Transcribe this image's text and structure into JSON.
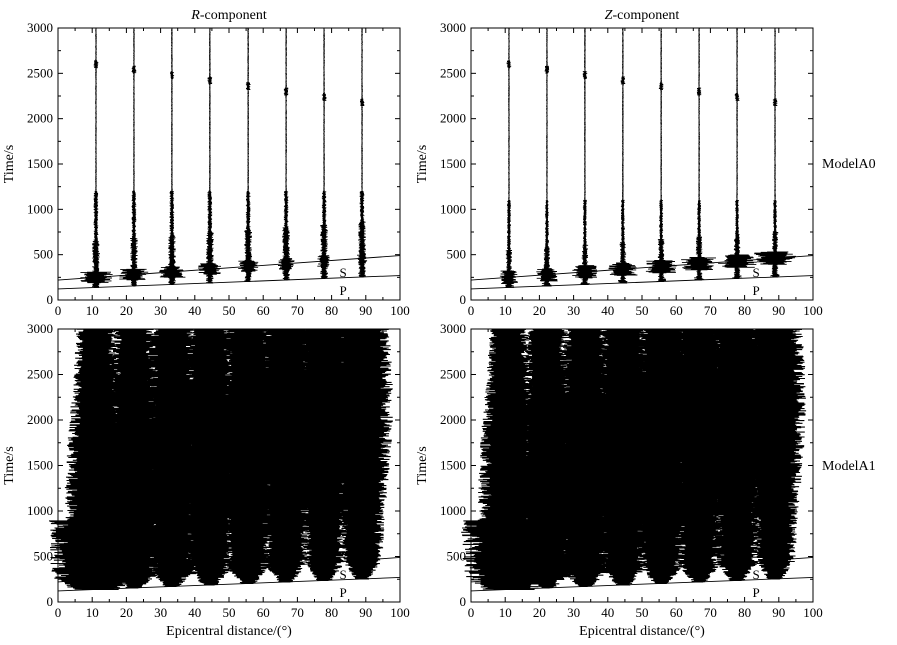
{
  "figure": {
    "column_titles": [
      {
        "italic": "R",
        "rest": "-component"
      },
      {
        "italic": "Z",
        "rest": "-component"
      }
    ],
    "row_labels": [
      "ModelA0",
      "ModelA1"
    ],
    "xlabel": "Epicentral distance/(°)",
    "ylabel": "Time/s"
  },
  "chart_data": [
    {
      "type": "scatter",
      "panel": "R-component / ModelA0",
      "xlim": [
        0,
        100
      ],
      "ylim": [
        0,
        3000
      ],
      "x_ticks": [
        0,
        10,
        20,
        30,
        40,
        50,
        60,
        70,
        80,
        90,
        100
      ],
      "y_ticks": [
        0,
        500,
        1000,
        1500,
        2000,
        2500,
        3000
      ],
      "trace_distances": [
        11.1,
        22.2,
        33.3,
        44.4,
        55.6,
        66.7,
        77.8,
        88.9
      ],
      "travel_time_curves": [
        {
          "name": "S",
          "points": [
            [
              0,
              220
            ],
            [
              100,
              490
            ]
          ]
        },
        {
          "name": "P",
          "points": [
            [
              0,
              122
            ],
            [
              100,
              270
            ]
          ]
        }
      ]
    },
    {
      "type": "scatter",
      "panel": "Z-component / ModelA0",
      "xlim": [
        0,
        100
      ],
      "ylim": [
        0,
        3000
      ],
      "x_ticks": [
        0,
        10,
        20,
        30,
        40,
        50,
        60,
        70,
        80,
        90,
        100
      ],
      "y_ticks": [
        0,
        500,
        1000,
        1500,
        2000,
        2500,
        3000
      ],
      "trace_distances": [
        11.1,
        22.2,
        33.3,
        44.4,
        55.6,
        66.7,
        77.8,
        88.9
      ],
      "travel_time_curves": [
        {
          "name": "S",
          "points": [
            [
              0,
              220
            ],
            [
              100,
              490
            ]
          ]
        },
        {
          "name": "P",
          "points": [
            [
              0,
              122
            ],
            [
              100,
              270
            ]
          ]
        }
      ]
    },
    {
      "type": "scatter",
      "panel": "R-component / ModelA1",
      "xlim": [
        0,
        100
      ],
      "ylim": [
        0,
        3000
      ],
      "x_ticks": [
        0,
        10,
        20,
        30,
        40,
        50,
        60,
        70,
        80,
        90,
        100
      ],
      "y_ticks": [
        0,
        500,
        1000,
        1500,
        2000,
        2500,
        3000
      ],
      "trace_distances": [
        11.1,
        22.2,
        33.3,
        44.4,
        55.6,
        66.7,
        77.8,
        88.9
      ],
      "travel_time_curves": [
        {
          "name": "S",
          "points": [
            [
              0,
              220
            ],
            [
              100,
              490
            ]
          ]
        },
        {
          "name": "P",
          "points": [
            [
              0,
              122
            ],
            [
              100,
              270
            ]
          ]
        }
      ]
    },
    {
      "type": "scatter",
      "panel": "Z-component / ModelA1",
      "xlim": [
        0,
        100
      ],
      "ylim": [
        0,
        3000
      ],
      "x_ticks": [
        0,
        10,
        20,
        30,
        40,
        50,
        60,
        70,
        80,
        90,
        100
      ],
      "y_ticks": [
        0,
        500,
        1000,
        1500,
        2000,
        2500,
        3000
      ],
      "trace_distances": [
        11.1,
        22.2,
        33.3,
        44.4,
        55.6,
        66.7,
        77.8,
        88.9
      ],
      "travel_time_curves": [
        {
          "name": "S",
          "points": [
            [
              0,
              220
            ],
            [
              100,
              490
            ]
          ]
        },
        {
          "name": "P",
          "points": [
            [
              0,
              122
            ],
            [
              100,
              270
            ]
          ]
        }
      ]
    }
  ]
}
